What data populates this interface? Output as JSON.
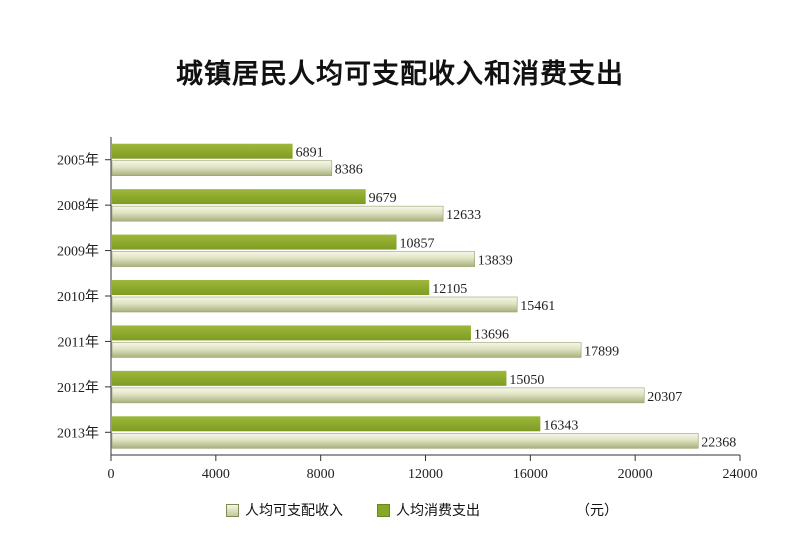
{
  "chart_data": {
    "type": "bar",
    "orientation": "horizontal",
    "title": "城镇居民人均可支配收入和消费支出",
    "categories": [
      "2005年",
      "2008年",
      "2009年",
      "2010年",
      "2011年",
      "2012年",
      "2013年"
    ],
    "series": [
      {
        "name": "人均消费支出",
        "values": [
          6891,
          9679,
          10857,
          12105,
          13696,
          15050,
          16343
        ],
        "color": "#8aa62a"
      },
      {
        "name": "人均可支配收入",
        "values": [
          8386,
          12633,
          13839,
          15461,
          17899,
          20307,
          22368
        ],
        "color": "#d6dab3"
      }
    ],
    "xlim": [
      0,
      24000
    ],
    "xticks": [
      0,
      4000,
      8000,
      12000,
      16000,
      20000,
      24000
    ],
    "xlabel": "",
    "ylabel": "",
    "unit": "（元）",
    "grid": false,
    "legend_position": "bottom",
    "legend": [
      "人均可支配收入",
      "人均消费支出"
    ]
  }
}
